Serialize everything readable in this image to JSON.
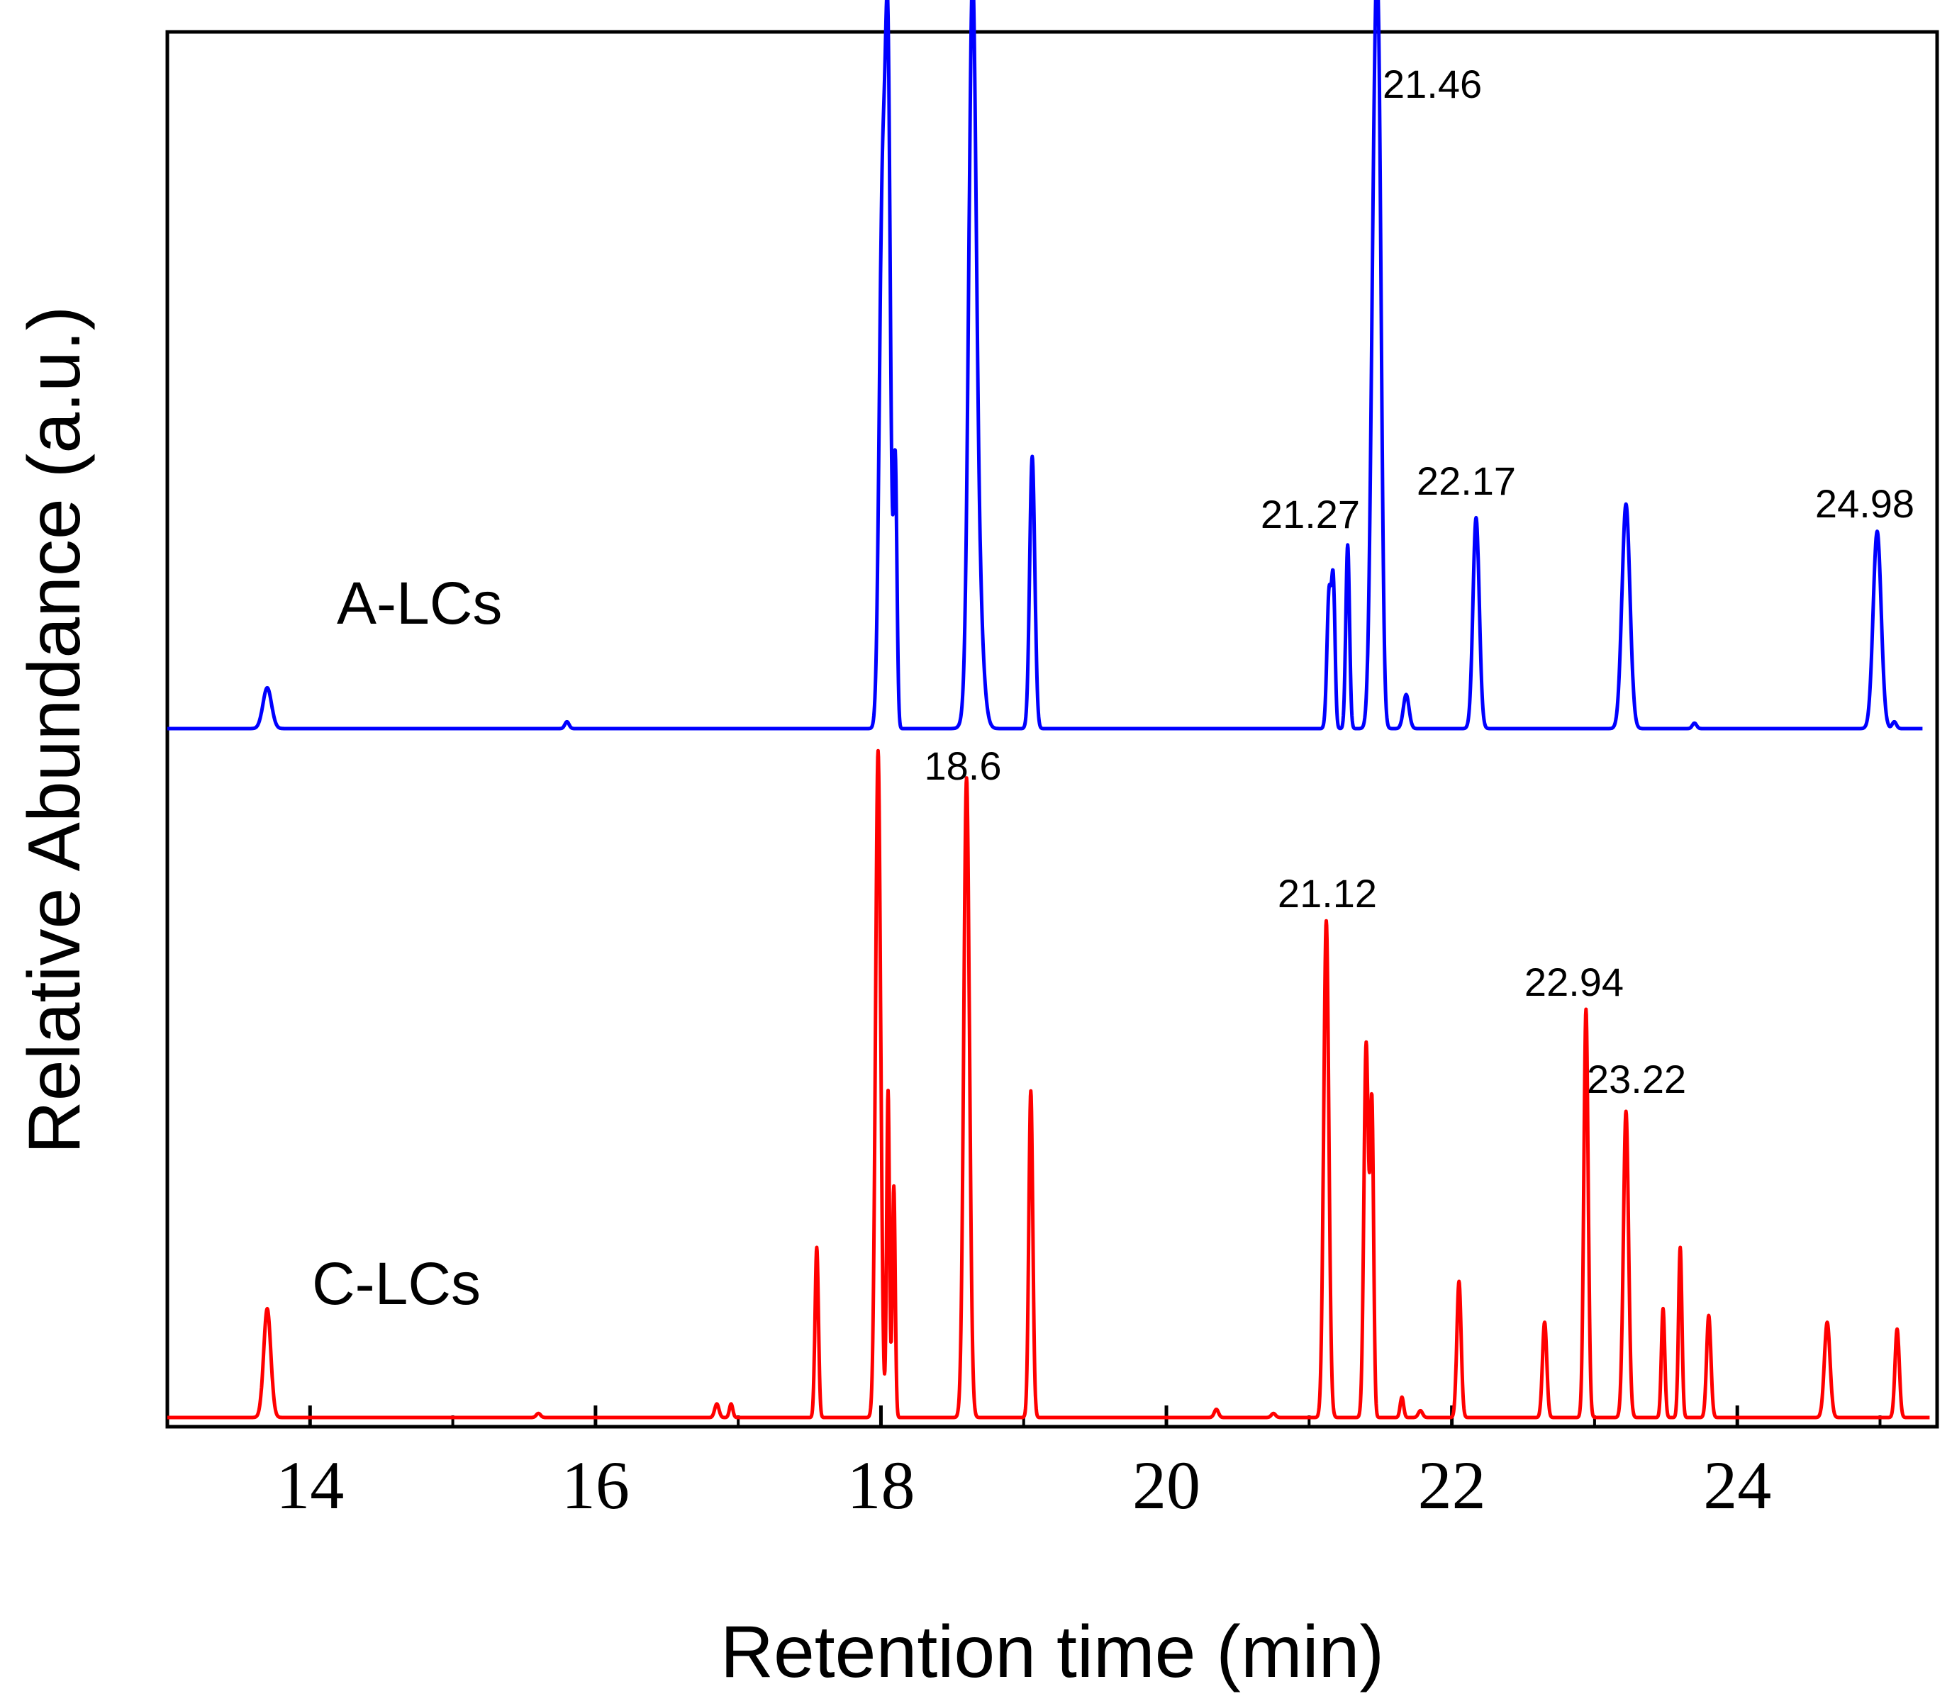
{
  "chart_data": {
    "type": "line",
    "xlabel": "Retention time (min)",
    "ylabel": "Relative Abundance (a.u.)",
    "xlim": [
      13,
      25.4
    ],
    "ylim": [
      0,
      2
    ],
    "xticks": [
      14,
      16,
      18,
      20,
      22,
      24
    ],
    "grid": false,
    "legend": "inline labels",
    "series": [
      {
        "name": "A-LCs",
        "color": "#0000ff",
        "baseline_offset": 1.0,
        "peaks": [
          {
            "rt": 13.7,
            "height": 0.06,
            "width": 0.03
          },
          {
            "rt": 15.8,
            "height": 0.01,
            "width": 0.015
          },
          {
            "rt": 18.01,
            "height": 0.77,
            "width": 0.022
          },
          {
            "rt": 18.05,
            "height": 0.9,
            "width": 0.018
          },
          {
            "rt": 18.1,
            "height": 0.39,
            "width": 0.012
          },
          {
            "rt": 18.64,
            "height": 0.84,
            "width": 0.025
          },
          {
            "rt": 18.66,
            "height": 0.3,
            "width": 0.04
          },
          {
            "rt": 19.06,
            "height": 0.4,
            "width": 0.018
          },
          {
            "rt": 21.14,
            "height": 0.2,
            "width": 0.015
          },
          {
            "rt": 21.17,
            "height": 0.2,
            "width": 0.012
          },
          {
            "rt": 21.27,
            "height": 0.27,
            "width": 0.013
          },
          {
            "rt": 21.46,
            "height": 0.8,
            "width": 0.025
          },
          {
            "rt": 21.49,
            "height": 0.6,
            "width": 0.02
          },
          {
            "rt": 21.68,
            "height": 0.05,
            "width": 0.02
          },
          {
            "rt": 22.17,
            "height": 0.31,
            "width": 0.022
          },
          {
            "rt": 23.22,
            "height": 0.33,
            "width": 0.028
          },
          {
            "rt": 23.7,
            "height": 0.008,
            "width": 0.015
          },
          {
            "rt": 24.98,
            "height": 0.29,
            "width": 0.028
          },
          {
            "rt": 25.1,
            "height": 0.01,
            "width": 0.015
          }
        ]
      },
      {
        "name": "C-LCs",
        "color": "#ff0000",
        "baseline_offset": 0.0,
        "peaks": [
          {
            "rt": 13.7,
            "height": 0.16,
            "width": 0.025
          },
          {
            "rt": 15.6,
            "height": 0.006,
            "width": 0.015
          },
          {
            "rt": 16.85,
            "height": 0.02,
            "width": 0.015
          },
          {
            "rt": 16.95,
            "height": 0.02,
            "width": 0.012
          },
          {
            "rt": 17.55,
            "height": 0.25,
            "width": 0.012
          },
          {
            "rt": 17.98,
            "height": 0.98,
            "width": 0.018
          },
          {
            "rt": 18.05,
            "height": 0.48,
            "width": 0.01
          },
          {
            "rt": 18.09,
            "height": 0.34,
            "width": 0.01
          },
          {
            "rt": 18.6,
            "height": 0.94,
            "width": 0.02
          },
          {
            "rt": 19.05,
            "height": 0.48,
            "width": 0.014
          },
          {
            "rt": 20.35,
            "height": 0.012,
            "width": 0.015
          },
          {
            "rt": 20.75,
            "height": 0.006,
            "width": 0.015
          },
          {
            "rt": 21.12,
            "height": 0.73,
            "width": 0.018
          },
          {
            "rt": 21.4,
            "height": 0.55,
            "width": 0.016
          },
          {
            "rt": 21.44,
            "height": 0.45,
            "width": 0.012
          },
          {
            "rt": 21.65,
            "height": 0.03,
            "width": 0.012
          },
          {
            "rt": 21.78,
            "height": 0.01,
            "width": 0.015
          },
          {
            "rt": 22.05,
            "height": 0.2,
            "width": 0.015
          },
          {
            "rt": 22.65,
            "height": 0.14,
            "width": 0.015
          },
          {
            "rt": 22.94,
            "height": 0.6,
            "width": 0.015
          },
          {
            "rt": 23.22,
            "height": 0.45,
            "width": 0.018
          },
          {
            "rt": 23.48,
            "height": 0.16,
            "width": 0.012
          },
          {
            "rt": 23.6,
            "height": 0.25,
            "width": 0.012
          },
          {
            "rt": 23.8,
            "height": 0.15,
            "width": 0.015
          },
          {
            "rt": 24.63,
            "height": 0.14,
            "width": 0.02
          },
          {
            "rt": 25.12,
            "height": 0.13,
            "width": 0.015
          }
        ]
      }
    ],
    "series_labels": [
      {
        "text": "A-LCs",
        "series": 0
      },
      {
        "text": "C-LCs",
        "series": 1
      }
    ],
    "annotations": [
      {
        "text": "21.46",
        "rt": 21.46,
        "series": 0
      },
      {
        "text": "21.27",
        "rt": 21.27,
        "series": 0
      },
      {
        "text": "22.17",
        "rt": 22.17,
        "series": 0
      },
      {
        "text": "24.98",
        "rt": 24.98,
        "series": 0
      },
      {
        "text": "18.6",
        "rt": 18.6,
        "series": 1
      },
      {
        "text": "21.12",
        "rt": 21.12,
        "series": 1
      },
      {
        "text": "22.94",
        "rt": 22.94,
        "series": 1
      },
      {
        "text": "23.22",
        "rt": 23.22,
        "series": 1
      }
    ]
  }
}
